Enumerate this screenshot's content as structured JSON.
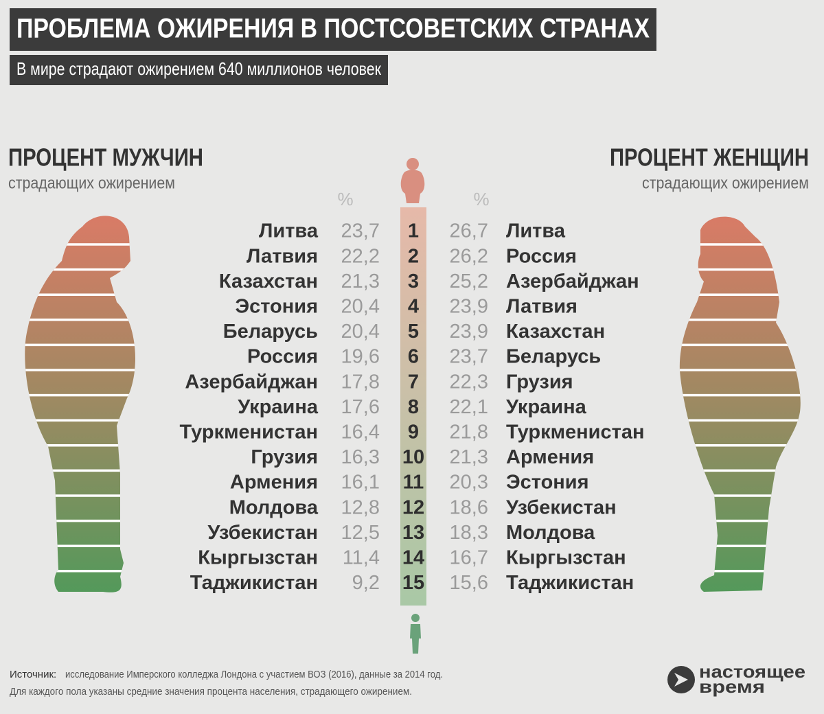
{
  "header": {
    "title": "ПРОБЛЕМА ОЖИРЕНИЯ В ПОСТСОВЕТСКИХ СТРАНАХ",
    "subtitle": "В мире страдают ожирением 640 миллионов человек"
  },
  "men": {
    "heading": "ПРОЦЕНТ МУЖЧИН",
    "subheading": "страдающих ожирением",
    "unit": "%",
    "rows": [
      {
        "country": "Литва",
        "value": "23,7"
      },
      {
        "country": "Латвия",
        "value": "22,2"
      },
      {
        "country": "Казахстан",
        "value": "21,3"
      },
      {
        "country": "Эстония",
        "value": "20,4"
      },
      {
        "country": "Беларусь",
        "value": "20,4"
      },
      {
        "country": "Россия",
        "value": "19,6"
      },
      {
        "country": "Азербайджан",
        "value": "17,8"
      },
      {
        "country": "Украина",
        "value": "17,6"
      },
      {
        "country": "Туркменистан",
        "value": "16,4"
      },
      {
        "country": "Грузия",
        "value": "16,3"
      },
      {
        "country": "Армения",
        "value": "16,1"
      },
      {
        "country": "Молдова",
        "value": "12,8"
      },
      {
        "country": "Узбекистан",
        "value": "12,5"
      },
      {
        "country": "Кыргызстан",
        "value": "11,4"
      },
      {
        "country": "Таджикистан",
        "value": "9,2"
      }
    ]
  },
  "women": {
    "heading": "ПРОЦЕНТ ЖЕНЩИН",
    "subheading": "страдающих ожирением",
    "unit": "%",
    "rows": [
      {
        "country": "Литва",
        "value": "26,7"
      },
      {
        "country": "Россия",
        "value": "26,2"
      },
      {
        "country": "Азербайджан",
        "value": "25,2"
      },
      {
        "country": "Латвия",
        "value": "23,9"
      },
      {
        "country": "Казахстан",
        "value": "23,9"
      },
      {
        "country": "Беларусь",
        "value": "23,7"
      },
      {
        "country": "Грузия",
        "value": "22,3"
      },
      {
        "country": "Украина",
        "value": "22,1"
      },
      {
        "country": "Туркменистан",
        "value": "21,8"
      },
      {
        "country": "Армения",
        "value": "21,3"
      },
      {
        "country": "Эстония",
        "value": "20,3"
      },
      {
        "country": "Узбекистан",
        "value": "18,6"
      },
      {
        "country": "Молдова",
        "value": "18,3"
      },
      {
        "country": "Кыргызстан",
        "value": "16,7"
      },
      {
        "country": "Таджикистан",
        "value": "15,6"
      }
    ]
  },
  "ranks": [
    1,
    2,
    3,
    4,
    5,
    6,
    7,
    8,
    9,
    10,
    11,
    12,
    13,
    14,
    15
  ],
  "footer": {
    "source_label": "Источник:",
    "source": "исследование Имперского колледжа Лондона с участием ВОЗ (2016), данные за 2014 год.",
    "note": "Для каждого пола указаны средние значения процента населения, страдающего ожирением."
  },
  "logo": {
    "line1": "настоящее",
    "line2": "время"
  }
}
